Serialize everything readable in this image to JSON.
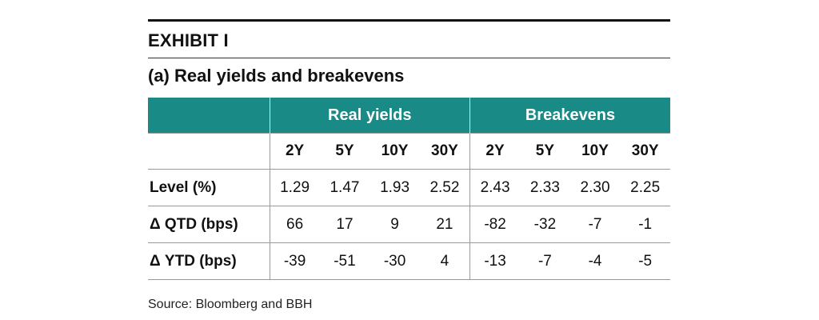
{
  "exhibit_label": "EXHIBIT I",
  "subtitle": "(a) Real yields and breakevens",
  "groups": [
    "Real yields",
    "Breakevens"
  ],
  "tenors": [
    "2Y",
    "5Y",
    "10Y",
    "30Y",
    "2Y",
    "5Y",
    "10Y",
    "30Y"
  ],
  "rows": [
    {
      "label": "Level (%)",
      "values": [
        "1.29",
        "1.47",
        "1.93",
        "2.52",
        "2.43",
        "2.33",
        "2.30",
        "2.25"
      ]
    },
    {
      "label": "Δ QTD (bps)",
      "values": [
        "66",
        "17",
        "9",
        "21",
        "-82",
        "-32",
        "-7",
        "-1"
      ]
    },
    {
      "label": "Δ YTD (bps)",
      "values": [
        "-39",
        "-51",
        "-30",
        "4",
        "-13",
        "-7",
        "-4",
        "-5"
      ]
    }
  ],
  "source": "Source: Bloomberg and BBH",
  "colors": {
    "header_teal": "#1a8a87"
  }
}
